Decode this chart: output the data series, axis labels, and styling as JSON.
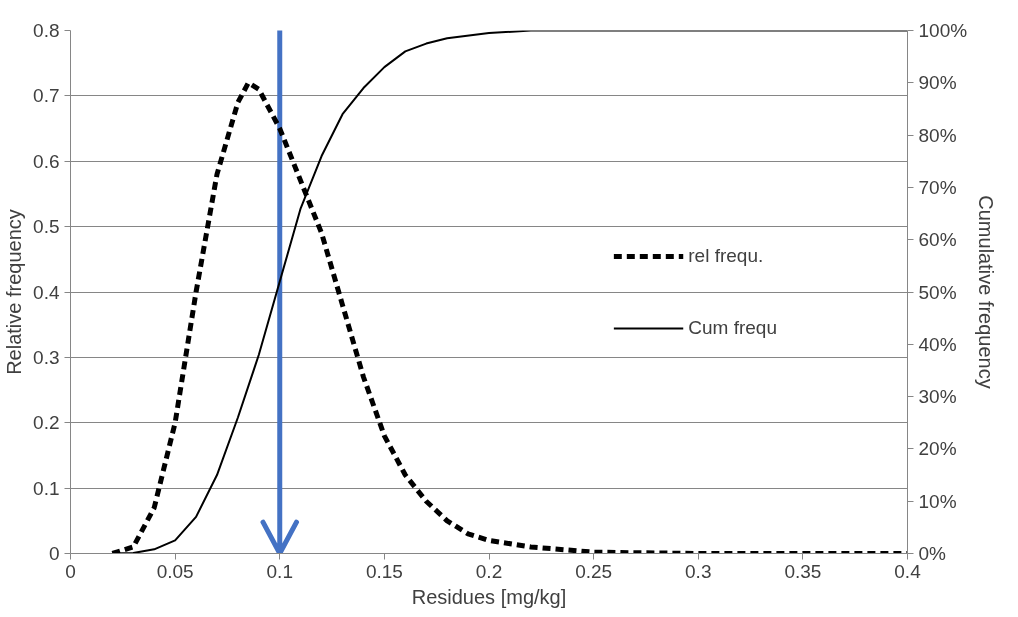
{
  "chart_data": {
    "type": "line",
    "xlabel": "Residues [mg/kg]",
    "ylabel": "Relative frequency",
    "y2label": "Cumulative frequency",
    "xlim": [
      0,
      0.4
    ],
    "xticks": [
      0,
      0.05,
      0.1,
      0.15,
      0.2,
      0.25,
      0.3,
      0.35,
      0.4
    ],
    "ylim": [
      0,
      0.8
    ],
    "yticks": [
      0,
      0.1,
      0.2,
      0.3,
      0.4,
      0.5,
      0.6,
      0.7,
      0.8
    ],
    "y2lim": [
      0,
      100
    ],
    "y2ticks": [
      {
        "value": 0,
        "label": "0%"
      },
      {
        "value": 10,
        "label": "10%"
      },
      {
        "value": 20,
        "label": "20%"
      },
      {
        "value": 30,
        "label": "30%"
      },
      {
        "value": 40,
        "label": "40%"
      },
      {
        "value": 50,
        "label": "50%"
      },
      {
        "value": 60,
        "label": "60%"
      },
      {
        "value": 70,
        "label": "70%"
      },
      {
        "value": 80,
        "label": "80%"
      },
      {
        "value": 90,
        "label": "90%"
      },
      {
        "value": 100,
        "label": "100%"
      }
    ],
    "grid": "y",
    "legend": "right",
    "marker": "none",
    "ref_lines": [
      {
        "axis": "x",
        "value": 0.1,
        "color": "#4472c4"
      }
    ],
    "series": [
      {
        "name": "rel frequ.",
        "color": "#000000",
        "line_style": "dashed",
        "x": [
          0.02,
          0.03,
          0.04,
          0.05,
          0.06,
          0.07,
          0.08,
          0.085,
          0.09,
          0.1,
          0.11,
          0.12,
          0.13,
          0.14,
          0.15,
          0.16,
          0.17,
          0.18,
          0.19,
          0.2,
          0.22,
          0.25,
          0.3,
          0.4
        ],
        "values": [
          0,
          0.01,
          0.07,
          0.2,
          0.4,
          0.58,
          0.69,
          0.72,
          0.71,
          0.65,
          0.57,
          0.49,
          0.38,
          0.27,
          0.18,
          0.12,
          0.08,
          0.05,
          0.03,
          0.02,
          0.01,
          0.002,
          0,
          0
        ]
      },
      {
        "name": "Cum frequ",
        "color": "#000000",
        "line_style": "solid",
        "axis": "y2",
        "x": [
          0.02,
          0.03,
          0.04,
          0.05,
          0.06,
          0.07,
          0.08,
          0.09,
          0.1,
          0.11,
          0.12,
          0.13,
          0.14,
          0.15,
          0.16,
          0.17,
          0.18,
          0.2,
          0.22,
          0.25,
          0.4
        ],
        "values": [
          0,
          0.1,
          0.8,
          2.5,
          7,
          15,
          26,
          38,
          52,
          66,
          76,
          84,
          89,
          93,
          96,
          97.5,
          98.5,
          99.5,
          100,
          100,
          100
        ]
      }
    ]
  }
}
